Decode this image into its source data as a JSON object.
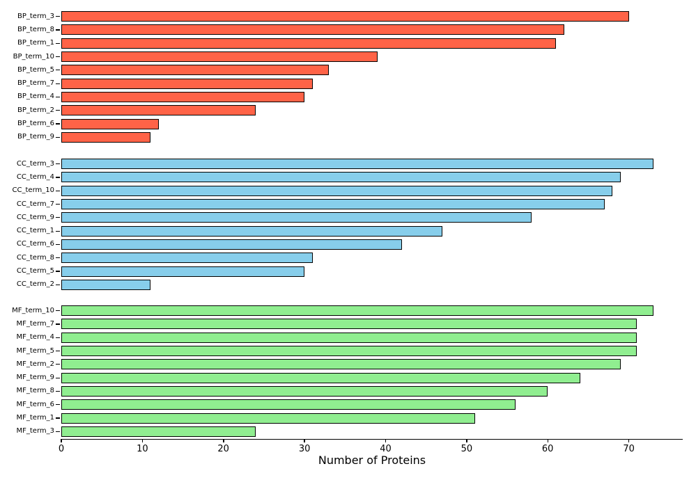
{
  "chart_data": {
    "type": "bar",
    "orientation": "horizontal",
    "title": "",
    "xlabel": "Number of Proteins",
    "ylabel": "",
    "xlim": [
      0,
      76.65
    ],
    "x_ticks": [
      0,
      10,
      20,
      30,
      40,
      50,
      60,
      70
    ],
    "grid": false,
    "legend": false,
    "bar_edge_color": "#000000",
    "groups": [
      {
        "name": "BP",
        "color": "#FF6347",
        "categories": [
          "BP_term_3",
          "BP_term_8",
          "BP_term_1",
          "BP_term_10",
          "BP_term_5",
          "BP_term_7",
          "BP_term_4",
          "BP_term_2",
          "BP_term_6",
          "BP_term_9"
        ],
        "values": [
          70,
          62,
          61,
          39,
          33,
          31,
          30,
          24,
          12,
          11
        ]
      },
      {
        "name": "CC",
        "color": "#87CEEB",
        "categories": [
          "CC_term_3",
          "CC_term_4",
          "CC_term_10",
          "CC_term_7",
          "CC_term_9",
          "CC_term_1",
          "CC_term_6",
          "CC_term_8",
          "CC_term_5",
          "CC_term_2"
        ],
        "values": [
          73,
          69,
          68,
          67,
          58,
          47,
          42,
          31,
          30,
          11
        ]
      },
      {
        "name": "MF",
        "color": "#90EE90",
        "categories": [
          "MF_term_10",
          "MF_term_7",
          "MF_term_4",
          "MF_term_5",
          "MF_term_2",
          "MF_term_9",
          "MF_term_8",
          "MF_term_6",
          "MF_term_1",
          "MF_term_3"
        ],
        "values": [
          73,
          71,
          71,
          71,
          69,
          64,
          60,
          56,
          51,
          24
        ]
      }
    ]
  }
}
